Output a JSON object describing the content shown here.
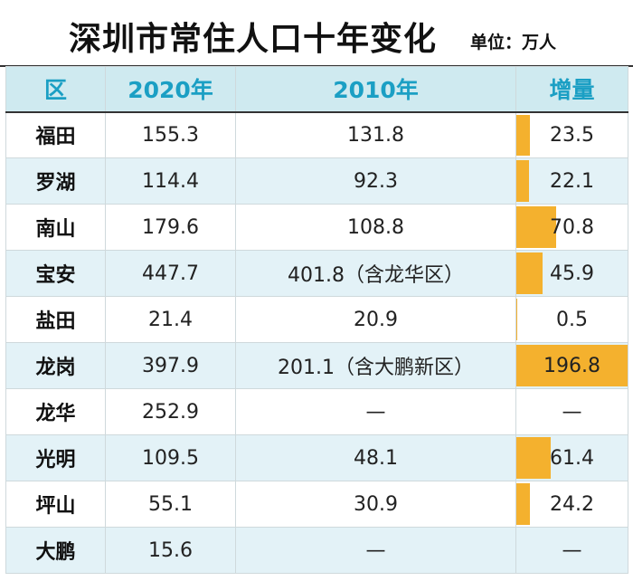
{
  "header": {
    "title": "深圳市常住人口十年变化",
    "unit": "单位：万人"
  },
  "chart_data": {
    "type": "table",
    "columns": [
      "区",
      "2020年",
      "2010年",
      "增量"
    ],
    "rows": [
      {
        "district": "福田",
        "y2020": "155.3",
        "y2010": "131.8",
        "increase": "23.5",
        "increase_value": 23.5
      },
      {
        "district": "罗湖",
        "y2020": "114.4",
        "y2010": "92.3",
        "increase": "22.1",
        "increase_value": 22.1
      },
      {
        "district": "南山",
        "y2020": "179.6",
        "y2010": "108.8",
        "increase": "70.8",
        "increase_value": 70.8
      },
      {
        "district": "宝安",
        "y2020": "447.7",
        "y2010": "401.8（含龙华区）",
        "increase": "45.9",
        "increase_value": 45.9
      },
      {
        "district": "盐田",
        "y2020": "21.4",
        "y2010": "20.9",
        "increase": "0.5",
        "increase_value": 0.5
      },
      {
        "district": "龙岗",
        "y2020": "397.9",
        "y2010": "201.1（含大鹏新区）",
        "increase": "196.8",
        "increase_value": 196.8
      },
      {
        "district": "龙华",
        "y2020": "252.9",
        "y2010": "—",
        "increase": "—",
        "increase_value": null
      },
      {
        "district": "光明",
        "y2020": "109.5",
        "y2010": "48.1",
        "increase": "61.4",
        "increase_value": 61.4
      },
      {
        "district": "坪山",
        "y2020": "55.1",
        "y2010": "30.9",
        "increase": "24.2",
        "increase_value": 24.2
      },
      {
        "district": "大鹏",
        "y2020": "15.6",
        "y2010": "—",
        "increase": "—",
        "increase_value": null
      }
    ],
    "bar_color": "#f4b12e",
    "header_color": "#1b9fc4",
    "header_bg": "#cfeaf0",
    "alt_row_bg": "#e3f2f7"
  }
}
